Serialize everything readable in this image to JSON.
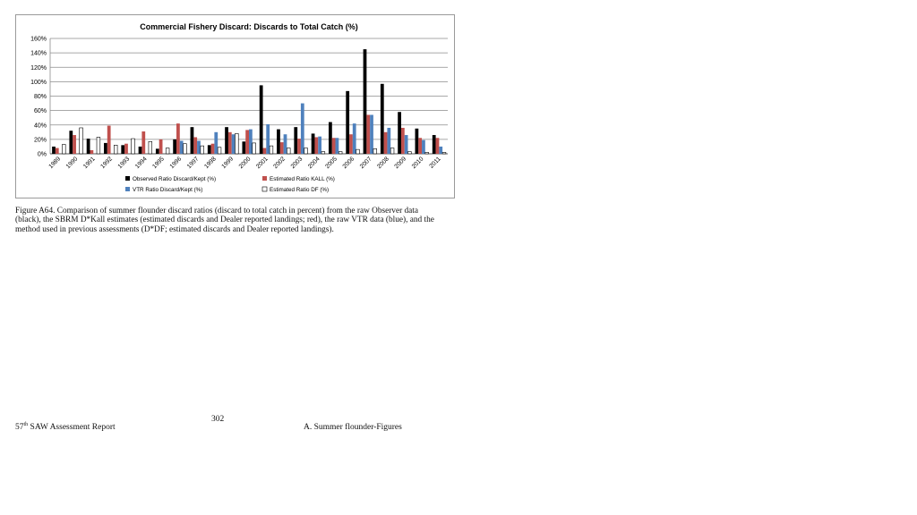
{
  "chart_data": {
    "type": "bar",
    "title": "Commercial Fishery Discard: Discards to Total Catch (%)",
    "xlabel": "",
    "ylabel": "",
    "ylim": [
      0,
      160
    ],
    "y_ticks": [
      "0%",
      "20%",
      "40%",
      "60%",
      "80%",
      "100%",
      "120%",
      "140%",
      "160%"
    ],
    "grid": true,
    "legend_position": "bottom",
    "categories": [
      "1989",
      "1990",
      "1991",
      "1992",
      "1993",
      "1994",
      "1995",
      "1996",
      "1997",
      "1998",
      "1999",
      "2000",
      "2001",
      "2002",
      "2003",
      "2004",
      "2005",
      "2006",
      "2007",
      "2008",
      "2009",
      "2010",
      "2011"
    ],
    "series": [
      {
        "name": "Observed Ratio Discard/Kept (%)",
        "color": "#000000",
        "values": [
          10,
          32,
          21,
          15,
          12,
          10,
          7,
          20,
          37,
          12,
          37,
          17,
          95,
          34,
          37,
          28,
          44,
          87,
          145,
          97,
          58,
          35,
          26
        ]
      },
      {
        "name": "Estimated Ratio KALL (%)",
        "color": "#c0504d",
        "values": [
          8,
          26,
          5,
          39,
          14,
          31,
          20,
          42,
          23,
          14,
          30,
          33,
          8,
          16,
          21,
          23,
          22,
          27,
          54,
          30,
          36,
          22,
          22
        ]
      },
      {
        "name": "VTR Ratio Discard/Kept (%)",
        "color": "#4f81bd",
        "values": [
          0,
          0,
          0,
          0,
          0,
          0,
          0,
          18,
          18,
          30,
          27,
          34,
          41,
          27,
          70,
          24,
          22,
          42,
          54,
          36,
          26,
          19,
          10
        ]
      },
      {
        "name": "Estimated Ratio DF (%)",
        "color": "#ffffff",
        "values": [
          13,
          36,
          23,
          12,
          21,
          17,
          8,
          14,
          11,
          9,
          28,
          15,
          11,
          8,
          8,
          3,
          3,
          6,
          7,
          8,
          3,
          2,
          2
        ]
      }
    ]
  },
  "caption": "Figure A64. Comparison of summer flounder discard ratios (discard to total catch in percent) from the raw Observer data (black), the SBRM D*Kall estimates (estimated discards and Dealer reported landings; red), the raw VTR data (blue), and the method used in previous assessments (D*DF; estimated discards and Dealer reported landings).",
  "footer": {
    "page_number": "302",
    "report_number": "57",
    "report_suffix": "th",
    "report_name": "SAW Assessment Report",
    "section": "A. Summer flounder-Figures"
  }
}
